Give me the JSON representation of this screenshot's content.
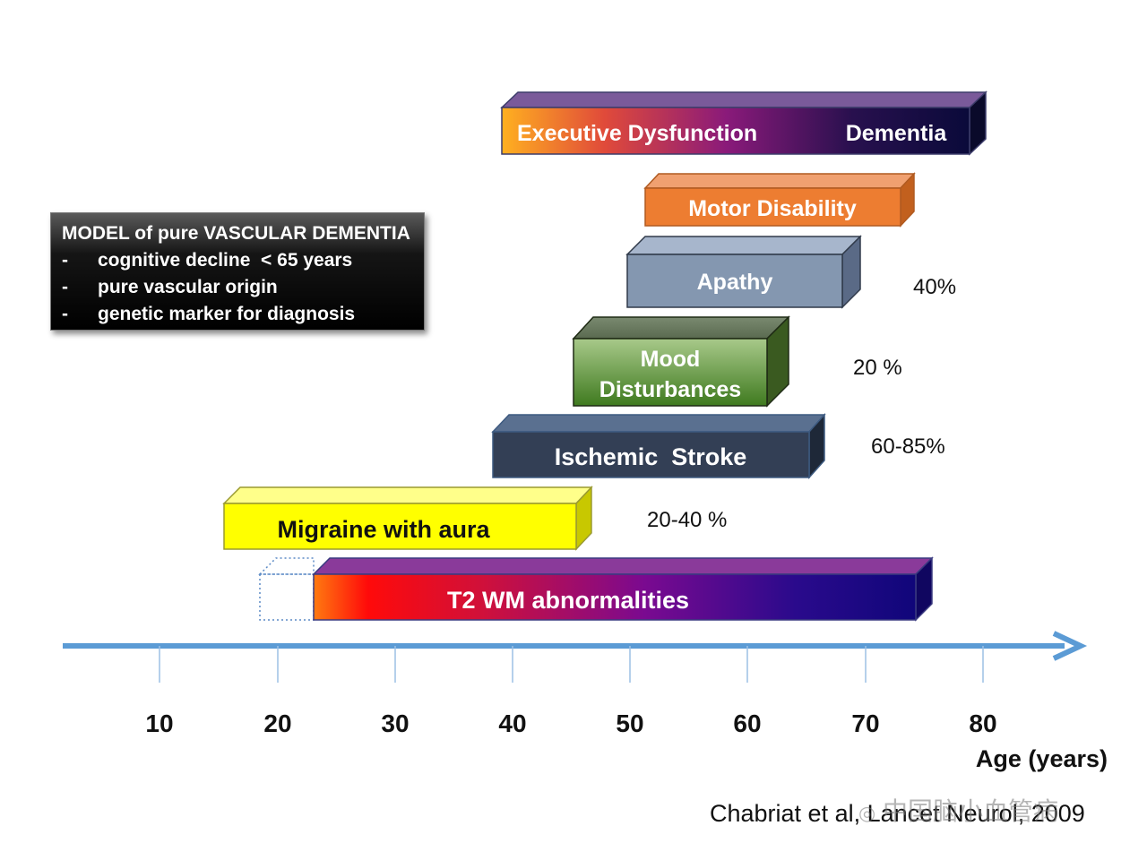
{
  "model_box": {
    "title": "MODEL of pure VASCULAR DEMENTIA",
    "items": [
      {
        "dash": "-",
        "text": "cognitive decline  < 65 years"
      },
      {
        "dash": "-",
        "text": "pure vascular origin"
      },
      {
        "dash": "-",
        "text": "genetic marker for diagnosis"
      }
    ]
  },
  "bars": {
    "executive": {
      "label": "Executive Dysfunction",
      "label2": "Dementia",
      "start_age": 39,
      "end_age": 79
    },
    "motor": {
      "label": "Motor Disability",
      "start_age": 51,
      "end_age": 74
    },
    "apathy": {
      "label": "Apathy",
      "start_age": 50,
      "end_age": 69
    },
    "mood": {
      "label_line1": "Mood",
      "label_line2": "Disturbances",
      "start_age": 45.5,
      "end_age": 64
    },
    "stroke": {
      "label": "Ischemic  Stroke",
      "start_age": 38,
      "end_age": 67
    },
    "migraine": {
      "label": "Migraine with aura",
      "start_age": 16,
      "end_age": 47
    },
    "t2wm": {
      "label": "T2 WM abnormalities",
      "start_age": 24,
      "end_age": 75,
      "dotted_start_age": 19
    }
  },
  "percentages": {
    "apathy": "40%",
    "mood": "20 %",
    "stroke": "60-85%",
    "migraine": "20-40 %"
  },
  "axis": {
    "ticks": [
      "10",
      "20",
      "30",
      "40",
      "50",
      "60",
      "70",
      "80"
    ],
    "title": "Age (years)"
  },
  "citation": "Chabriat et al, Lancet Neurol, 2009",
  "watermark": "中国脑小血管病",
  "colors": {
    "arrow": "#5b9bd5",
    "motor": "#ed7d31",
    "apathy": "#8497b0",
    "mood": "#6a9a3a",
    "stroke": "#333f55",
    "migraine": "#ffff00",
    "t2_gradient": [
      "#ff6a00",
      "#ff0000",
      "#8a0a8a",
      "#1a0a8c"
    ],
    "executive_gradient": [
      "#ffb020",
      "#a0207a",
      "#2a0a5a",
      "#000030"
    ]
  }
}
